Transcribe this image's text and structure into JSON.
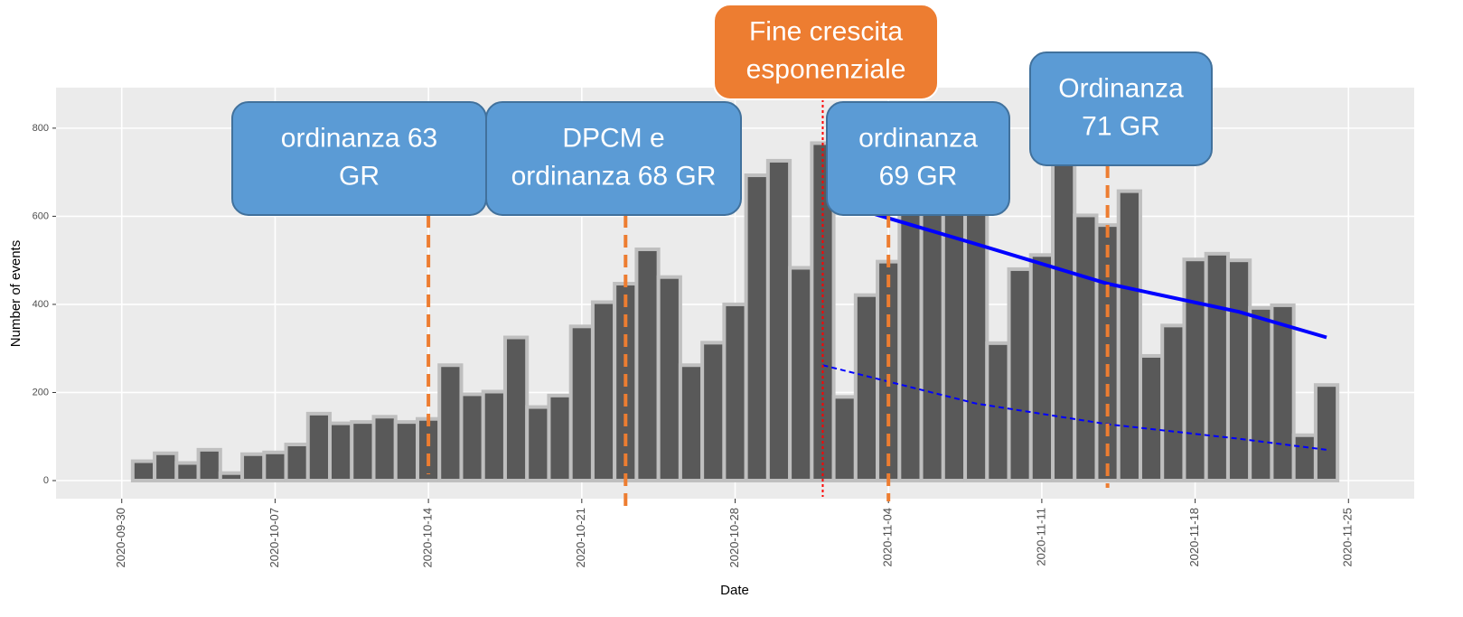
{
  "chart_data": {
    "type": "bar",
    "x_label": "Date",
    "y_label": "Number of events",
    "categories": [
      "2020-10-01",
      "2020-10-02",
      "2020-10-03",
      "2020-10-04",
      "2020-10-05",
      "2020-10-06",
      "2020-10-07",
      "2020-10-08",
      "2020-10-09",
      "2020-10-10",
      "2020-10-11",
      "2020-10-12",
      "2020-10-13",
      "2020-10-14",
      "2020-10-15",
      "2020-10-16",
      "2020-10-17",
      "2020-10-18",
      "2020-10-19",
      "2020-10-20",
      "2020-10-21",
      "2020-10-22",
      "2020-10-23",
      "2020-10-24",
      "2020-10-25",
      "2020-10-26",
      "2020-10-27",
      "2020-10-28",
      "2020-10-29",
      "2020-10-30",
      "2020-10-31",
      "2020-11-01",
      "2020-11-02",
      "2020-11-03",
      "2020-11-04",
      "2020-11-05",
      "2020-11-06",
      "2020-11-07",
      "2020-11-08",
      "2020-11-09",
      "2020-11-10",
      "2020-11-11",
      "2020-11-12",
      "2020-11-13",
      "2020-11-14",
      "2020-11-15",
      "2020-11-16",
      "2020-11-17",
      "2020-11-18",
      "2020-11-19",
      "2020-11-20",
      "2020-11-21",
      "2020-11-22",
      "2020-11-23",
      "2020-11-24"
    ],
    "values": [
      44,
      62,
      40,
      70,
      17,
      60,
      64,
      82,
      152,
      130,
      133,
      145,
      133,
      140,
      262,
      196,
      202,
      325,
      167,
      193,
      350,
      405,
      447,
      525,
      462,
      262,
      313,
      400,
      693,
      726,
      483,
      766,
      190,
      421,
      497,
      650,
      640,
      640,
      640,
      312,
      480,
      512,
      740,
      602,
      580,
      657,
      283,
      352,
      502,
      515,
      500,
      392,
      398,
      103,
      217
    ],
    "color": "#595959",
    "edge_color": "#bfbfbf",
    "lines": [
      {
        "color": "#0000ff",
        "style": "solid",
        "x": [
          "2020-11-02",
          "2020-11-08",
          "2020-11-14",
          "2020-11-20",
          "2020-11-24"
        ],
        "values": [
          625,
          537,
          447,
          383,
          325
        ]
      },
      {
        "color": "#0000ff",
        "style": "dotted",
        "x": [
          "2020-11-01",
          "2020-11-08",
          "2020-11-14",
          "2020-11-20",
          "2020-11-24"
        ],
        "values": [
          262,
          175,
          128,
          95,
          70
        ]
      }
    ],
    "annotations": [
      {
        "text": [
          "ordinanza 63",
          "GR"
        ],
        "date": "2020-10-14",
        "color": "#5b9bd5",
        "line_color": "#ed7d31"
      },
      {
        "text": [
          "DPCM e",
          "ordinanza 68 GR"
        ],
        "date": "2020-10-23",
        "color": "#5b9bd5",
        "line_color": "#ed7d31"
      },
      {
        "text": [
          "Fine crescita",
          "esponenziale"
        ],
        "date": "2020-11-01",
        "color": "#ed7d31",
        "line_color": "#ff0000"
      },
      {
        "text": [
          "ordinanza",
          "69 GR"
        ],
        "date": "2020-11-04",
        "color": "#5b9bd5",
        "line_color": "#ed7d31"
      },
      {
        "text": [
          "Ordinanza",
          "71 GR"
        ],
        "date": "2020-11-14",
        "color": "#5b9bd5",
        "line_color": "#ed7d31"
      }
    ],
    "xlim": [
      "2020-09-27",
      "2020-11-28"
    ],
    "xticks": [
      "2020-09-30",
      "2020-10-07",
      "2020-10-14",
      "2020-10-21",
      "2020-10-28",
      "2020-11-04",
      "2020-11-11",
      "2020-11-18",
      "2020-11-25"
    ],
    "ylim": [
      -41,
      892
    ],
    "yticks": [
      0,
      200,
      400,
      600,
      800
    ],
    "grid": true
  }
}
